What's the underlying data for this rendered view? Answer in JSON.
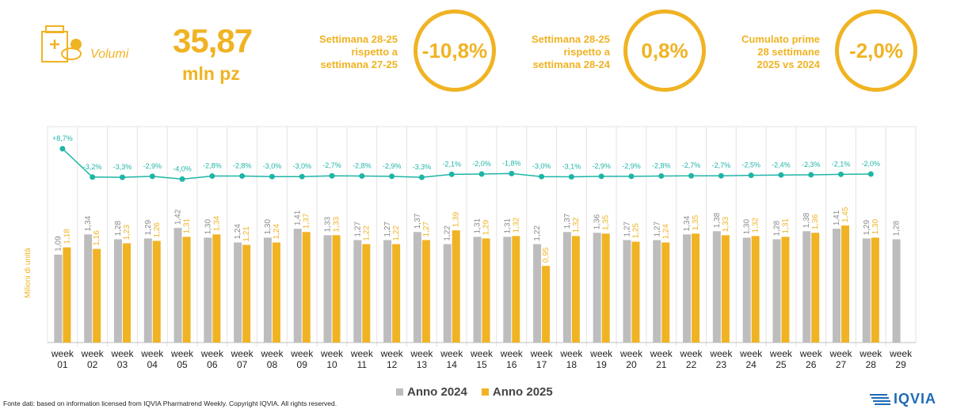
{
  "header": {
    "kpi_label": "Volumi",
    "kpi_value": "35,87",
    "kpi_unit": "mln pz",
    "icon": "pill-box-icon",
    "comparisons": [
      {
        "lines": [
          "Settimana 28-25",
          "rispetto a",
          "settimana 27-25"
        ],
        "value": "-10,8%"
      },
      {
        "lines": [
          "Settimana 28-25",
          "rispetto a",
          "settimana 28-24"
        ],
        "value": "0,8%"
      },
      {
        "lines": [
          "Cumulato prime",
          "28 settimane",
          "2025 vs 2024"
        ],
        "value": "-2,0%"
      }
    ]
  },
  "colors": {
    "accent": "#f0b323",
    "gray": "#bdbdbd",
    "line": "#1fb5a6"
  },
  "chart_data": {
    "type": "bar",
    "ylabel": "Milioni di unità",
    "categories": [
      "week 01",
      "week 02",
      "week 03",
      "week 04",
      "week 05",
      "week 06",
      "week 07",
      "week 08",
      "week 09",
      "week 10",
      "week 11",
      "week 12",
      "week 13",
      "week 14",
      "week 15",
      "week 16",
      "week 17",
      "week 18",
      "week 19",
      "week 20",
      "week 21",
      "week 22",
      "week 23",
      "week 24",
      "week 25",
      "week 26",
      "week 27",
      "week 28",
      "week 29"
    ],
    "series": [
      {
        "name": "Anno 2024",
        "color": "#bdbdbd",
        "values": [
          1.09,
          1.34,
          1.28,
          1.29,
          1.42,
          1.3,
          1.24,
          1.3,
          1.41,
          1.33,
          1.27,
          1.27,
          1.37,
          1.22,
          1.31,
          1.31,
          1.22,
          1.37,
          1.36,
          1.27,
          1.27,
          1.34,
          1.38,
          1.3,
          1.28,
          1.38,
          1.41,
          1.29,
          1.28
        ],
        "labels": [
          "1,09",
          "1,34",
          "1,28",
          "1,29",
          "1,42",
          "1,30",
          "1,24",
          "1,30",
          "1,41",
          "1,33",
          "1,27",
          "1,27",
          "1,37",
          "1,22",
          "1,31",
          "1,31",
          "1,22",
          "1,37",
          "1,36",
          "1,27",
          "1,27",
          "1,34",
          "1,38",
          "1,30",
          "1,28",
          "1,38",
          "1,41",
          "1,29",
          "1,28"
        ]
      },
      {
        "name": "Anno 2025",
        "color": "#f0b323",
        "values": [
          1.18,
          1.16,
          1.23,
          1.26,
          1.31,
          1.34,
          1.21,
          1.24,
          1.37,
          1.33,
          1.22,
          1.22,
          1.27,
          1.39,
          1.29,
          1.32,
          0.95,
          1.32,
          1.35,
          1.25,
          1.24,
          1.35,
          1.33,
          1.32,
          1.31,
          1.36,
          1.45,
          1.3,
          null
        ],
        "labels": [
          "1,18",
          "1,16",
          "1,23",
          "1,26",
          "1,31",
          "1,34",
          "1,21",
          "1,24",
          "1,37",
          "1,33",
          "1,22",
          "1,22",
          "1,27",
          "1,39",
          "1,29",
          "1,32",
          "0,95",
          "1,32",
          "1,35",
          "1,25",
          "1,24",
          "1,35",
          "1,33",
          "1,32",
          "1,31",
          "1,36",
          "1,45",
          "1,30",
          ""
        ]
      }
    ],
    "variation": {
      "values": [
        8.7,
        -3.2,
        -3.3,
        -2.9,
        -4.0,
        -2.8,
        -2.8,
        -3.0,
        -3.0,
        -2.7,
        -2.8,
        -2.9,
        -3.3,
        -2.1,
        -2.0,
        -1.8,
        -3.0,
        -3.1,
        -2.9,
        -2.9,
        -2.8,
        -2.7,
        -2.7,
        -2.5,
        -2.4,
        -2.3,
        -2.1,
        -2.0
      ],
      "labels": [
        "+8,7%",
        "-3,2%",
        "-3,3%",
        "-2,9%",
        "-4,0%",
        "-2,8%",
        "-2,8%",
        "-3,0%",
        "-3,0%",
        "-2,7%",
        "-2,8%",
        "-2,9%",
        "-3,3%",
        "-2,1%",
        "-2,0%",
        "-1,8%",
        "-3,0%",
        "-3,1%",
        "-2,9%",
        "-2,9%",
        "-2,8%",
        "-2,7%",
        "-2,7%",
        "-2,5%",
        "-2,4%",
        "-2,3%",
        "-2,1%",
        "-2,0%"
      ]
    },
    "grid": true
  },
  "legend": [
    {
      "label": "Anno 2024",
      "color": "#bdbdbd"
    },
    {
      "label": "Anno 2025",
      "color": "#f0b323"
    }
  ],
  "footer": {
    "source": "Fonte dati: based on information licensed from IQVIA Pharmatrend Weekly. Copyright IQVIA. All rights reserved.",
    "logo": "IQVIA"
  }
}
